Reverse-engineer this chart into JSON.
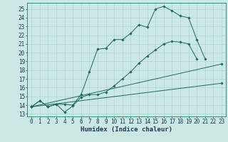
{
  "xlabel": "Humidex (Indice chaleur)",
  "xlim": [
    -0.5,
    23.5
  ],
  "ylim": [
    12.7,
    25.7
  ],
  "xticks": [
    0,
    1,
    2,
    3,
    4,
    5,
    6,
    7,
    8,
    9,
    10,
    11,
    12,
    13,
    14,
    15,
    16,
    17,
    18,
    19,
    20,
    21,
    22,
    23
  ],
  "yticks": [
    13,
    14,
    15,
    16,
    17,
    18,
    19,
    20,
    21,
    22,
    23,
    24,
    25
  ],
  "background_color": "#cce8e4",
  "grid_color": "#aad0cc",
  "line_color": "#1a6b5a",
  "line1_x": [
    0,
    1,
    2,
    3,
    4,
    5,
    6,
    7,
    8,
    9,
    10,
    11,
    12,
    13,
    14,
    15,
    16,
    17,
    18,
    19,
    20,
    21
  ],
  "line1_y": [
    13.8,
    14.5,
    13.8,
    14.1,
    14.1,
    14.0,
    15.2,
    17.8,
    20.4,
    20.5,
    21.5,
    21.5,
    22.2,
    23.2,
    22.9,
    25.0,
    25.3,
    24.8,
    24.2,
    24.0,
    21.5,
    19.3
  ],
  "line2_x": [
    0,
    1,
    2,
    3,
    4,
    5,
    6,
    7,
    8,
    9,
    10,
    11,
    12,
    13,
    14,
    15,
    16,
    17,
    18,
    19,
    20,
    21
  ],
  "line2_y": [
    13.8,
    14.5,
    13.8,
    14.1,
    13.2,
    13.9,
    14.9,
    15.2,
    15.2,
    15.5,
    16.2,
    17.0,
    17.8,
    18.8,
    19.6,
    20.3,
    21.0,
    21.3,
    21.2,
    21.0,
    19.3,
    null
  ],
  "line3_x": [
    0,
    23
  ],
  "line3_y": [
    13.8,
    18.7
  ],
  "line4_x": [
    0,
    23
  ],
  "line4_y": [
    13.8,
    16.5
  ],
  "figsize": [
    3.2,
    2.0
  ],
  "dpi": 100,
  "tick_fontsize": 5.5,
  "xlabel_fontsize": 6.5
}
